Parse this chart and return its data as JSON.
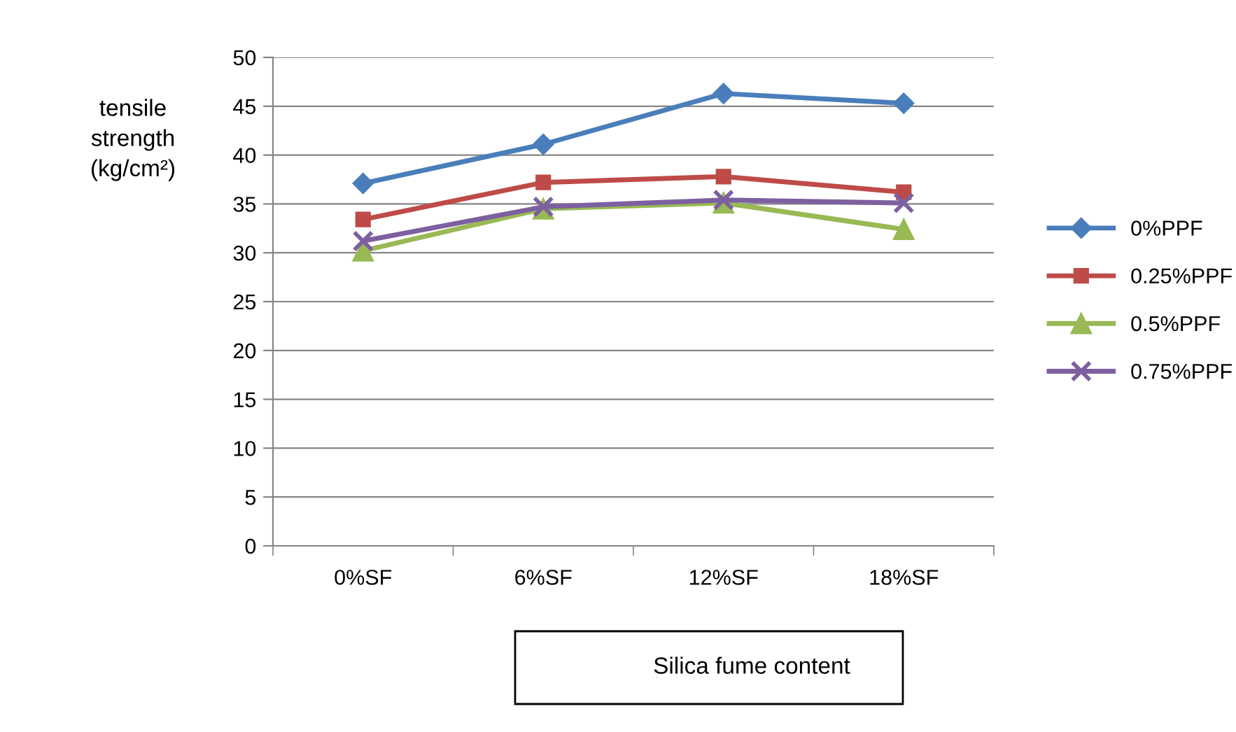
{
  "chart_data": {
    "type": "line",
    "ylabel": "tensile\nstrength\n(kg/cm²)",
    "xlabel": "Silica fume content",
    "categories": [
      "0%SF",
      "6%SF",
      "12%SF",
      "18%SF"
    ],
    "series": [
      {
        "name": "0%PPF",
        "color": "#4a7ebb",
        "marker": "diamond",
        "values": [
          37.1,
          41.1,
          46.3,
          45.3
        ]
      },
      {
        "name": "0.25%PPF",
        "color": "#be4b48",
        "marker": "square",
        "values": [
          33.4,
          37.2,
          37.8,
          36.2
        ]
      },
      {
        "name": "0.5%PPF",
        "color": "#98b954",
        "marker": "triangle",
        "values": [
          30.2,
          34.5,
          35.1,
          32.4
        ]
      },
      {
        "name": "0.75%PPF",
        "color": "#7d60a0",
        "marker": "cross",
        "values": [
          31.2,
          34.7,
          35.4,
          35.1
        ]
      }
    ],
    "ylim": [
      0,
      50
    ],
    "yticks": [
      0,
      5,
      10,
      15,
      20,
      25,
      30,
      35,
      40,
      45,
      50
    ],
    "grid": "y",
    "legend": "right"
  }
}
